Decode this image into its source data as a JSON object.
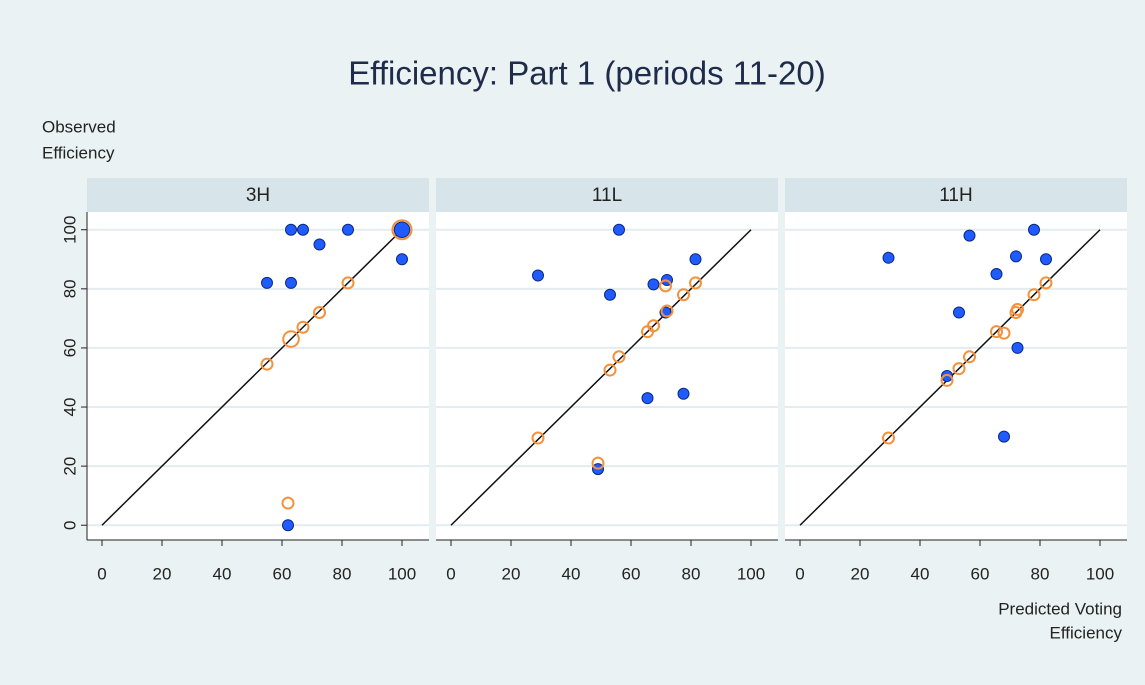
{
  "title": "Efficiency: Part 1 (periods 11-20)",
  "y_label": [
    "Observed",
    "Efficiency"
  ],
  "x_label": [
    "Predicted Voting",
    "Efficiency"
  ],
  "chart_data": [
    {
      "type": "scatter",
      "title": "3H",
      "xlim": [
        -5,
        109
      ],
      "ylim": [
        -5,
        106
      ],
      "xticks": [
        0,
        20,
        40,
        60,
        80,
        100
      ],
      "yticks": [
        0,
        20,
        40,
        60,
        80,
        100
      ],
      "grid": true,
      "diagonal": [
        0,
        100
      ],
      "series": [
        {
          "color": "#1f5bff",
          "style": "filled",
          "x": [
            63,
            67,
            82,
            72.5,
            55,
            63,
            100,
            100,
            62
          ],
          "values": [
            100,
            100,
            100,
            95,
            82,
            82,
            100,
            90,
            0
          ],
          "sizes": [
            1,
            1,
            1,
            1,
            1,
            1,
            2,
            1,
            1
          ]
        },
        {
          "color": "#f5913a",
          "style": "hollow",
          "x": [
            55,
            63,
            67,
            72.5,
            82,
            100,
            62
          ],
          "values": [
            54.5,
            63,
            67,
            72,
            82,
            100,
            7.5
          ],
          "sizes": [
            1,
            2,
            1,
            1,
            1,
            3,
            1
          ]
        }
      ]
    },
    {
      "type": "scatter",
      "title": "11L",
      "xlim": [
        -5,
        109
      ],
      "ylim": [
        -5,
        106
      ],
      "xticks": [
        0,
        20,
        40,
        60,
        80,
        100
      ],
      "yticks": [
        0,
        20,
        40,
        60,
        80,
        100
      ],
      "grid": true,
      "diagonal": [
        0,
        100
      ],
      "series": [
        {
          "color": "#1f5bff",
          "style": "filled",
          "x": [
            29,
            53,
            56,
            67.5,
            72,
            71.5,
            81.5,
            65.5,
            77.5,
            49
          ],
          "values": [
            84.5,
            78,
            100,
            81.5,
            83,
            72,
            90,
            43,
            44.5,
            19
          ]
        },
        {
          "color": "#f5913a",
          "style": "hollow",
          "x": [
            29,
            53,
            56,
            65.5,
            67.5,
            72,
            71.5,
            77.5,
            81.5,
            49
          ],
          "values": [
            29.5,
            52.5,
            57,
            65.5,
            67.5,
            72.5,
            81,
            78,
            82,
            21
          ]
        }
      ]
    },
    {
      "type": "scatter",
      "title": "11H",
      "xlim": [
        -5,
        109
      ],
      "ylim": [
        -5,
        106
      ],
      "xticks": [
        0,
        20,
        40,
        60,
        80,
        100
      ],
      "yticks": [
        0,
        20,
        40,
        60,
        80,
        100
      ],
      "grid": true,
      "diagonal": [
        0,
        100
      ],
      "series": [
        {
          "color": "#1f5bff",
          "style": "filled",
          "x": [
            29.5,
            49,
            53,
            56.5,
            65.5,
            72,
            72.5,
            68,
            78,
            82
          ],
          "values": [
            90.5,
            50.5,
            72,
            98,
            85,
            91,
            60,
            30,
            100,
            90
          ]
        },
        {
          "color": "#f5913a",
          "style": "hollow",
          "x": [
            29.5,
            49,
            53,
            56.5,
            65.5,
            68,
            72,
            72.5,
            78,
            82
          ],
          "values": [
            29.5,
            49,
            53,
            57,
            65.5,
            65,
            72,
            73,
            78,
            82
          ]
        }
      ]
    }
  ]
}
